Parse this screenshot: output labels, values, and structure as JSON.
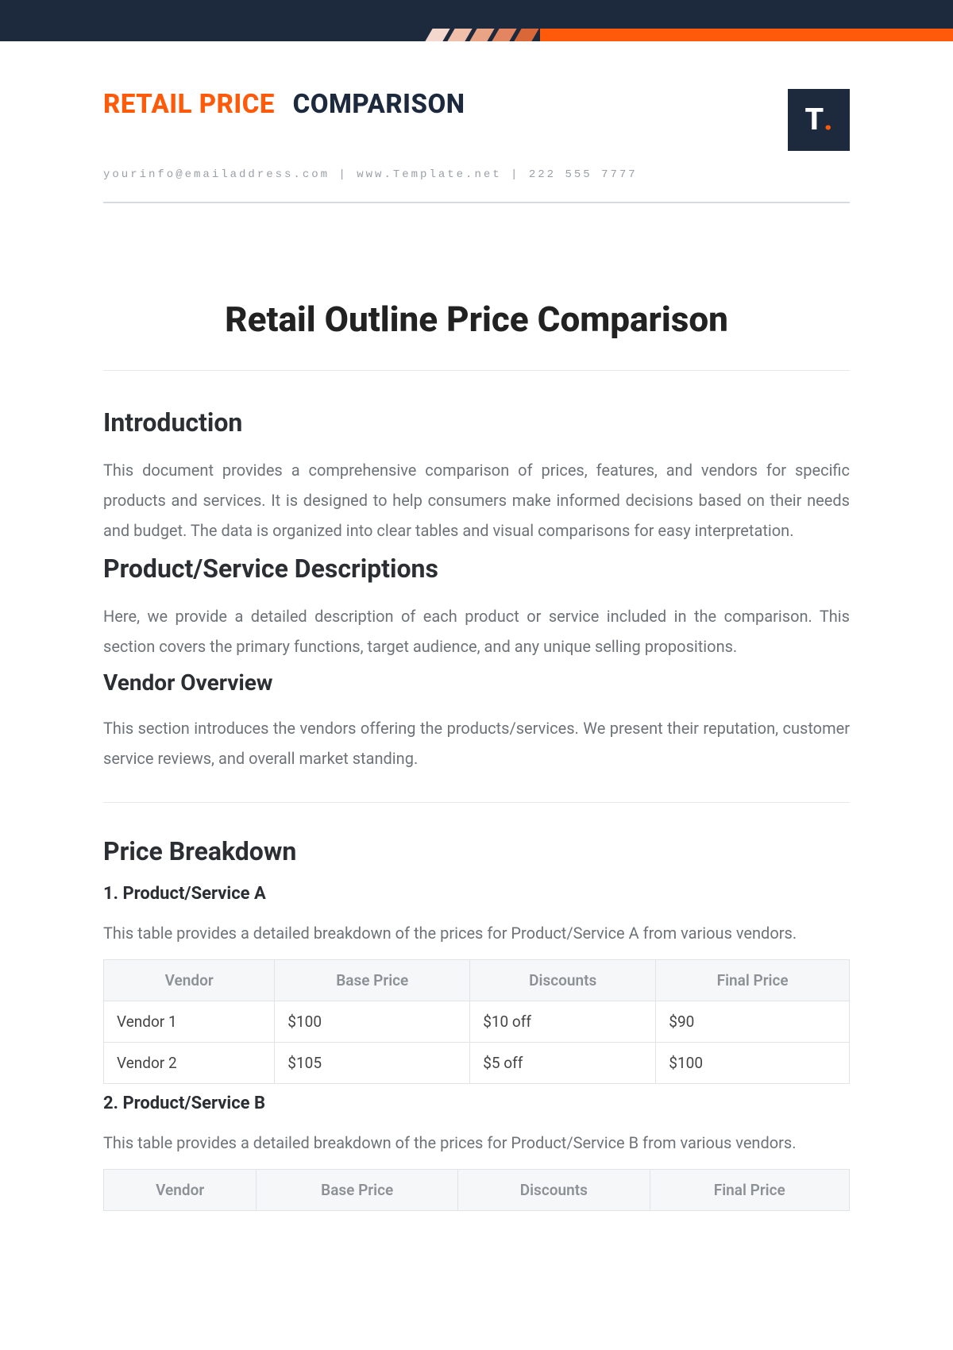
{
  "colors": {
    "navy": "#1d2a3d",
    "orange": "#ff5a0a",
    "text_muted": "#6d7378",
    "header_gray": "#8c9197",
    "border": "#e1e3e6",
    "th_bg": "#f6f7f8",
    "skew_shades": [
      "#f5d8cd",
      "#efbfa9",
      "#e9a385",
      "#e28560",
      "#da6738"
    ]
  },
  "header": {
    "brand_seg1": "RETAIL PRICE",
    "brand_seg2": "COMPARISON",
    "contact": "yourinfo@emailaddress.com | www.Template.net | 222 555 7777",
    "logo_letter": "T",
    "logo_dot": "."
  },
  "document": {
    "title": "Retail Outline Price Comparison"
  },
  "sections": {
    "intro": {
      "heading": "Introduction",
      "body": "This document provides a comprehensive comparison of prices, features, and vendors for specific products and services. It is designed to help consumers make informed decisions based on their needs and budget. The data is organized into clear tables and visual comparisons for easy interpretation."
    },
    "descriptions": {
      "heading": "Product/Service Descriptions",
      "body": "Here, we provide a detailed description of each product or service included in the comparison. This section covers the primary functions, target audience, and any unique selling propositions."
    },
    "vendors": {
      "heading": "Vendor Overview",
      "body": "This section introduces the vendors offering the products/services. We present their reputation, customer service reviews, and overall market standing."
    },
    "breakdown": {
      "heading": "Price Breakdown"
    }
  },
  "tables": {
    "columns": [
      "Vendor",
      "Base Price",
      "Discounts",
      "Final Price"
    ],
    "productA": {
      "title": "1. Product/Service A",
      "caption": "This table provides a detailed breakdown of the prices for Product/Service A from various vendors.",
      "rows": [
        [
          "Vendor 1",
          "$100",
          "$10 off",
          "$90"
        ],
        [
          "Vendor 2",
          "$105",
          "$5 off",
          "$100"
        ]
      ]
    },
    "productB": {
      "title": "2. Product/Service B",
      "caption": "This table provides a detailed breakdown of the prices for Product/Service B from various vendors."
    }
  }
}
